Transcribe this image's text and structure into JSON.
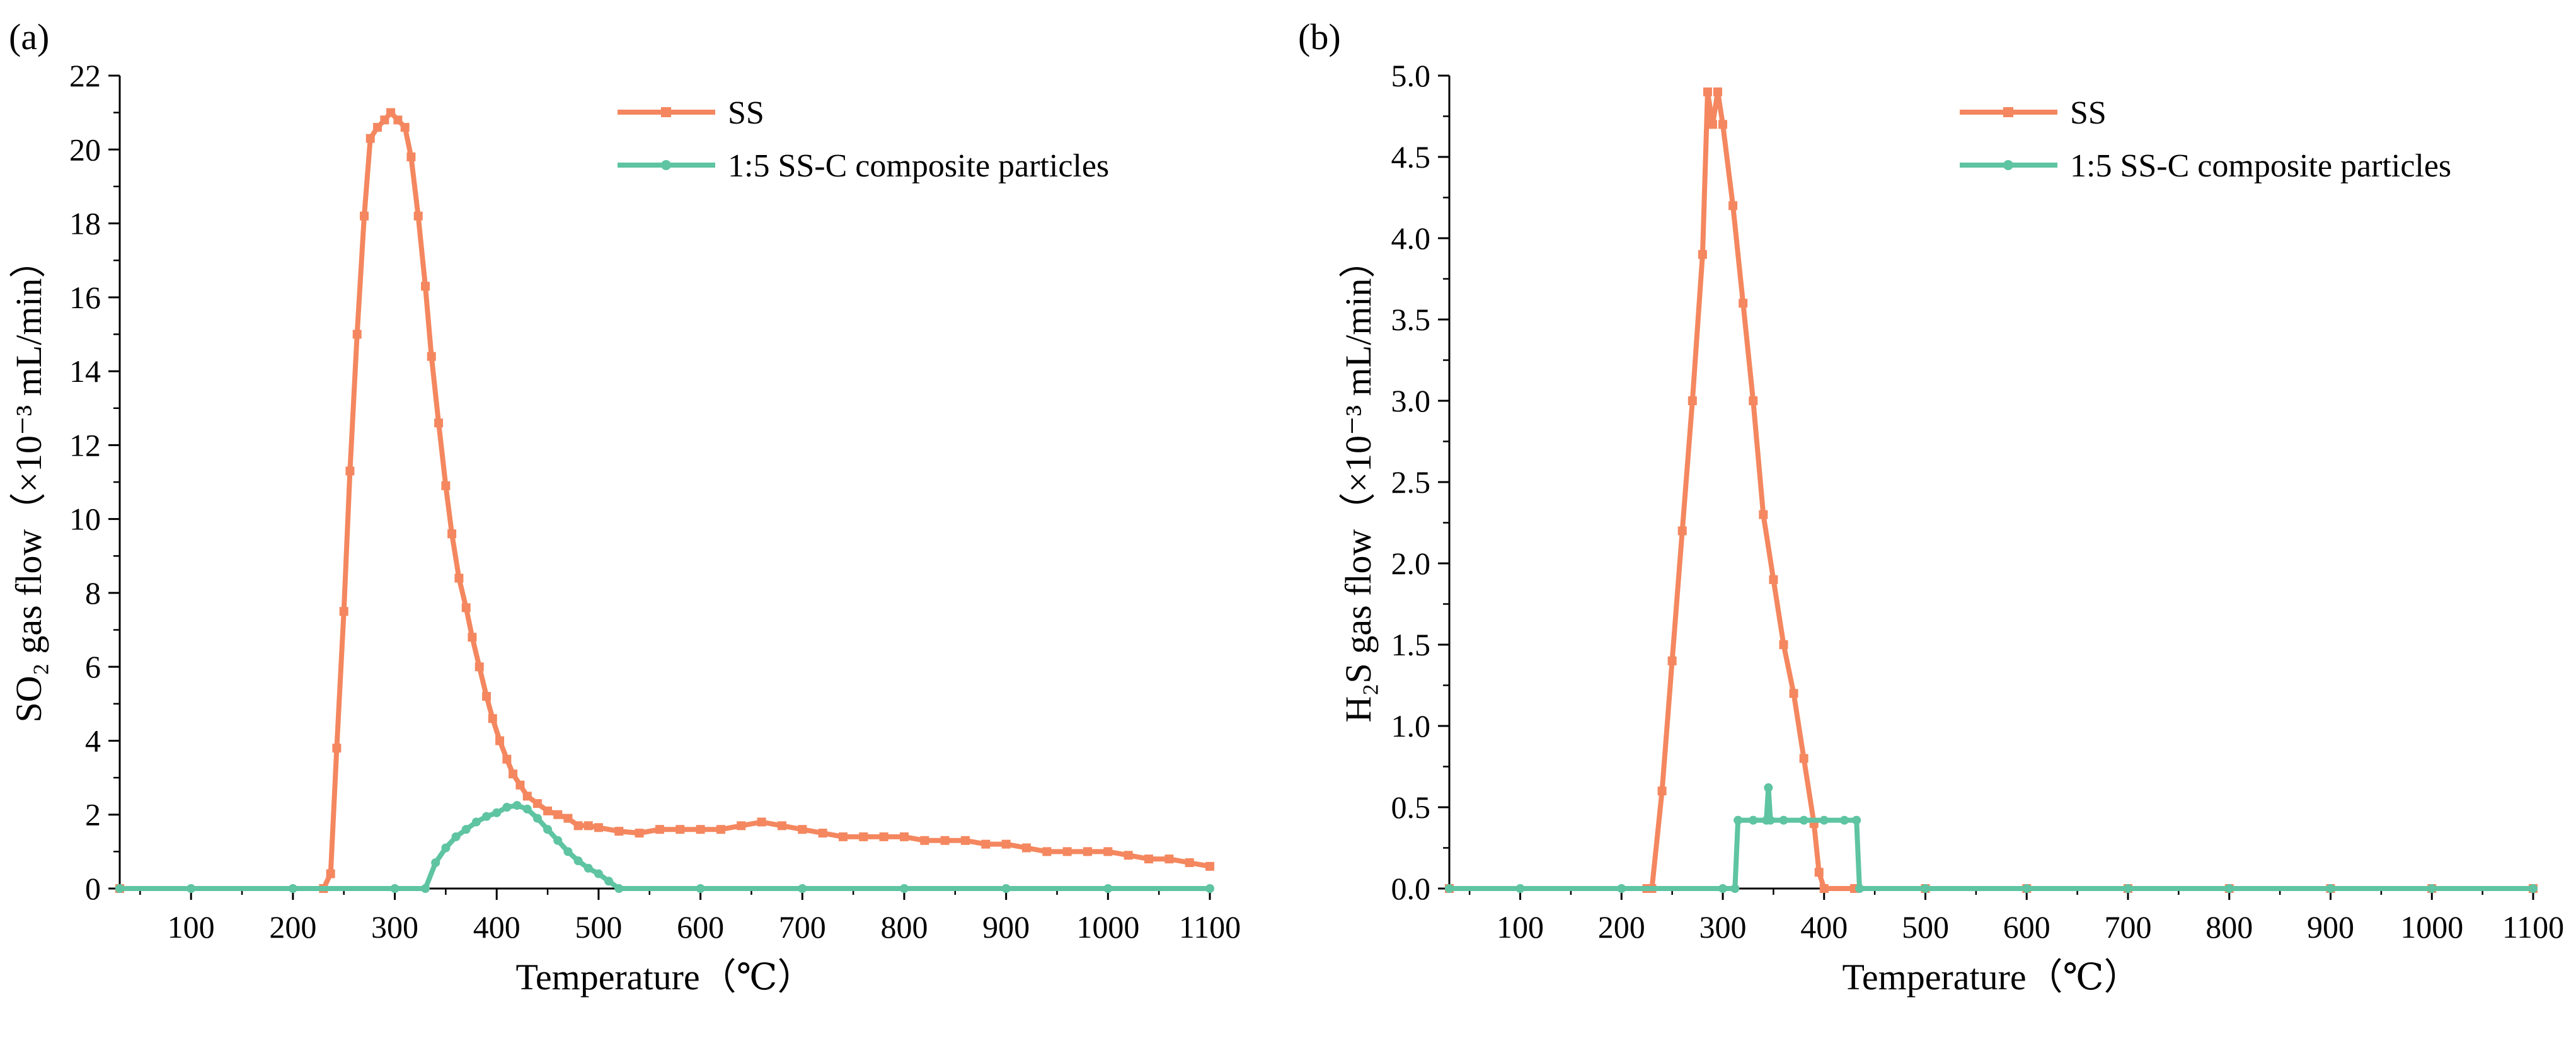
{
  "chart_data": [
    {
      "type": "line",
      "panel_label": "(a)",
      "title": "",
      "xlabel": "Temperature（℃）",
      "ylabel": "SO₂ gas flow（×10⁻³ mL/min）",
      "xlim": [
        30,
        1100
      ],
      "ylim": [
        0,
        22
      ],
      "xticks": [
        100,
        200,
        300,
        400,
        500,
        600,
        700,
        800,
        900,
        1000,
        1100
      ],
      "yticks": [
        0,
        2,
        4,
        6,
        8,
        10,
        12,
        14,
        16,
        18,
        20,
        22
      ],
      "legend_position": "top-right",
      "series": [
        {
          "name": "SS",
          "color": "#F4875F",
          "marker": "square",
          "x": [
            30,
            230,
            237,
            243,
            250,
            256,
            263,
            270,
            276,
            283,
            290,
            296,
            303,
            310,
            316,
            323,
            330,
            336,
            343,
            350,
            356,
            363,
            370,
            376,
            383,
            390,
            396,
            403,
            410,
            416,
            423,
            430,
            440,
            450,
            460,
            470,
            480,
            490,
            500,
            520,
            540,
            560,
            580,
            600,
            620,
            640,
            660,
            680,
            700,
            720,
            740,
            760,
            780,
            800,
            820,
            840,
            860,
            880,
            900,
            920,
            940,
            960,
            980,
            1000,
            1020,
            1040,
            1060,
            1080,
            1100
          ],
          "y": [
            0,
            0,
            0.4,
            3.8,
            7.5,
            11.3,
            15,
            18.2,
            20.3,
            20.6,
            20.8,
            21,
            20.8,
            20.6,
            19.8,
            18.2,
            16.3,
            14.4,
            12.6,
            10.9,
            9.6,
            8.4,
            7.6,
            6.8,
            6,
            5.2,
            4.6,
            4,
            3.5,
            3.1,
            2.8,
            2.5,
            2.3,
            2.1,
            2,
            1.9,
            1.7,
            1.7,
            1.65,
            1.55,
            1.5,
            1.6,
            1.6,
            1.6,
            1.6,
            1.7,
            1.8,
            1.7,
            1.6,
            1.5,
            1.4,
            1.4,
            1.4,
            1.4,
            1.3,
            1.3,
            1.3,
            1.2,
            1.2,
            1.1,
            1.0,
            1.0,
            1.0,
            1.0,
            0.9,
            0.8,
            0.8,
            0.7,
            0.6
          ]
        },
        {
          "name": "1:5 SS-C composite particles",
          "color": "#5EC4A2",
          "marker": "circle",
          "x": [
            30,
            100,
            200,
            300,
            330,
            340,
            350,
            360,
            370,
            380,
            390,
            400,
            410,
            420,
            430,
            440,
            450,
            460,
            470,
            480,
            490,
            500,
            510,
            520,
            600,
            700,
            800,
            900,
            1000,
            1100
          ],
          "y": [
            0,
            0,
            0,
            0,
            0,
            0.7,
            1.1,
            1.4,
            1.6,
            1.8,
            1.95,
            2.05,
            2.2,
            2.25,
            2.15,
            1.9,
            1.6,
            1.3,
            1.0,
            0.75,
            0.55,
            0.4,
            0.2,
            0,
            0,
            0,
            0,
            0,
            0,
            0
          ]
        }
      ]
    },
    {
      "type": "line",
      "panel_label": "(b)",
      "title": "",
      "xlabel": "Temperature（℃）",
      "ylabel": "H₂S gas flow（×10⁻³ mL/min）",
      "xlim": [
        30,
        1100
      ],
      "ylim": [
        0,
        5
      ],
      "xticks": [
        100,
        200,
        300,
        400,
        500,
        600,
        700,
        800,
        900,
        1000,
        1100
      ],
      "yticks": [
        0.0,
        0.5,
        1.0,
        1.5,
        2.0,
        2.5,
        3.0,
        3.5,
        4.0,
        4.5,
        5.0
      ],
      "ytick_labels": [
        "0.0",
        "0.5",
        "1.0",
        "1.5",
        "2.0",
        "2.5",
        "3.0",
        "3.5",
        "4.0",
        "4.5",
        "5.0"
      ],
      "legend_position": "top-right",
      "series": [
        {
          "name": "SS",
          "color": "#F4875F",
          "marker": "square",
          "x": [
            30,
            225,
            230,
            240,
            250,
            260,
            270,
            280,
            285,
            290,
            295,
            300,
            310,
            320,
            330,
            340,
            350,
            360,
            370,
            380,
            390,
            395,
            400,
            430,
            500,
            600,
            700,
            800,
            900,
            1000,
            1100
          ],
          "y": [
            0,
            0,
            0,
            0.6,
            1.4,
            2.2,
            3.0,
            3.9,
            4.9,
            4.7,
            4.9,
            4.7,
            4.2,
            3.6,
            3.0,
            2.3,
            1.9,
            1.5,
            1.2,
            0.8,
            0.4,
            0.1,
            0,
            0,
            0,
            0,
            0,
            0,
            0,
            0,
            0
          ]
        },
        {
          "name": "1:5 SS-C composite particles",
          "color": "#5EC4A2",
          "marker": "circle",
          "x": [
            30,
            100,
            200,
            300,
            312,
            315,
            330,
            343,
            345,
            347,
            360,
            380,
            400,
            420,
            432,
            435,
            500,
            600,
            700,
            800,
            900,
            1000,
            1100
          ],
          "y": [
            0,
            0,
            0,
            0,
            0,
            0.42,
            0.42,
            0.42,
            0.62,
            0.42,
            0.42,
            0.42,
            0.42,
            0.42,
            0.42,
            0,
            0,
            0,
            0,
            0,
            0,
            0,
            0
          ]
        }
      ]
    }
  ]
}
